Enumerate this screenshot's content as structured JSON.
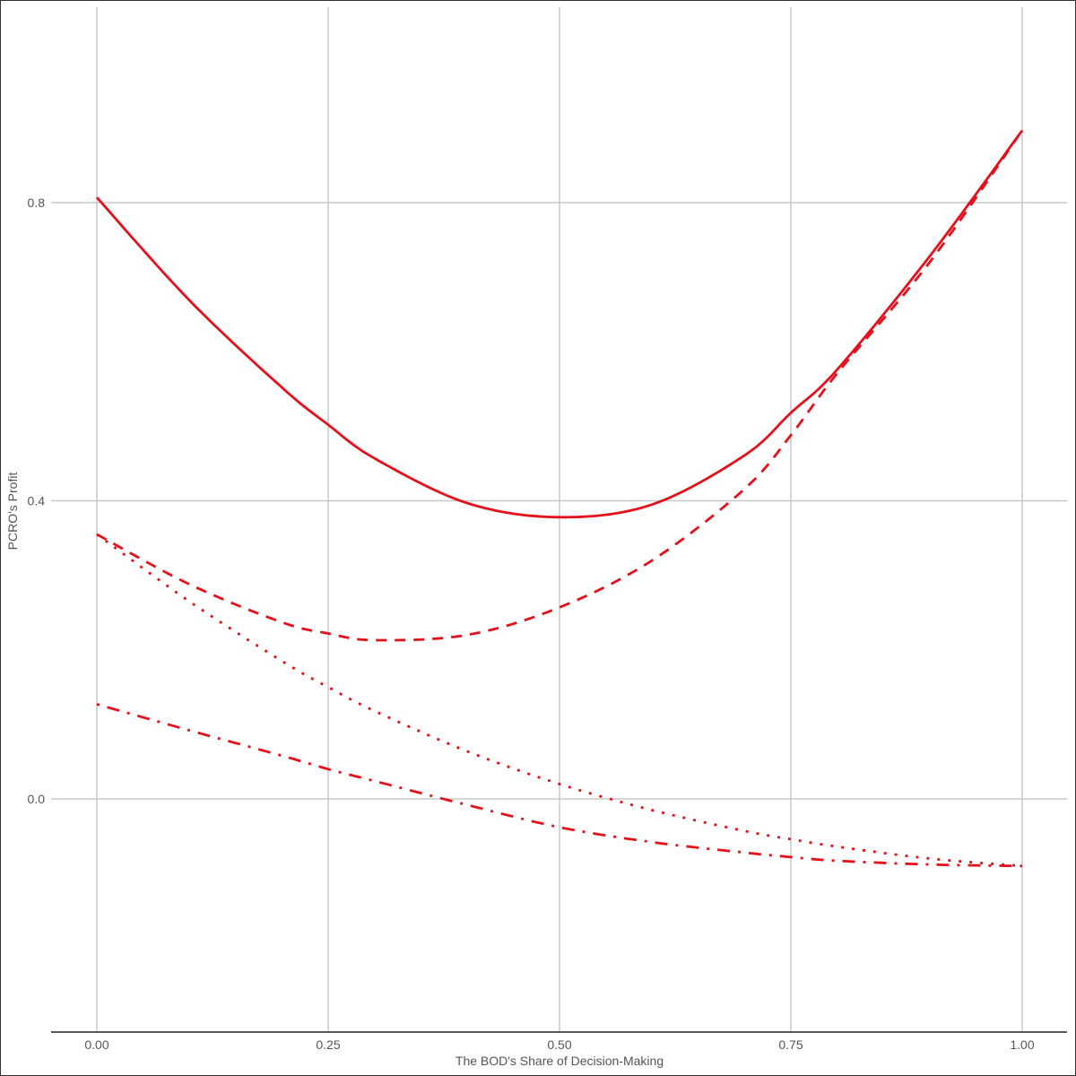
{
  "chart_data": {
    "type": "line",
    "title": "",
    "xlabel": "The BOD's Share of Decision-Making",
    "ylabel": "PCRO's Profit",
    "xlim": [
      0,
      1
    ],
    "ylim": [
      -0.31,
      1.06
    ],
    "x_ticks": [
      0.0,
      0.25,
      0.5,
      0.75,
      1.0
    ],
    "x_tick_labels": [
      "0.00",
      "0.25",
      "0.50",
      "0.75",
      "1.00"
    ],
    "y_ticks": [
      0.0,
      0.4,
      0.8
    ],
    "y_tick_labels": [
      "0.0",
      "0.4",
      "0.8"
    ],
    "grid": true,
    "legend": null,
    "x": [
      0,
      0.1,
      0.2,
      0.25,
      0.3,
      0.4,
      0.5,
      0.6,
      0.7,
      0.75,
      0.8,
      0.9,
      1.0
    ],
    "series": [
      {
        "name": "solid",
        "linestyle": "solid",
        "color": "#e4111b",
        "values": [
          0.807,
          0.669,
          0.552,
          0.502,
          0.457,
          0.397,
          0.378,
          0.395,
          0.461,
          0.518,
          0.576,
          0.728,
          0.897
        ]
      },
      {
        "name": "dashed",
        "linestyle": "dashed",
        "color": "#e4111b",
        "values": [
          0.355,
          0.288,
          0.237,
          0.222,
          0.213,
          0.22,
          0.257,
          0.32,
          0.416,
          0.488,
          0.571,
          0.72,
          0.897
        ]
      },
      {
        "name": "dotted",
        "linestyle": "dotted",
        "color": "#e4111b",
        "values": [
          0.355,
          0.265,
          0.185,
          0.15,
          0.118,
          0.064,
          0.02,
          -0.015,
          -0.043,
          -0.054,
          -0.064,
          -0.08,
          -0.09
        ]
      },
      {
        "name": "dotdash",
        "linestyle": "dotdash",
        "color": "#e4111b",
        "values": [
          0.127,
          0.092,
          0.058,
          0.04,
          0.024,
          -0.008,
          -0.038,
          -0.058,
          -0.072,
          -0.078,
          -0.083,
          -0.088,
          -0.09
        ]
      }
    ]
  },
  "colors": {
    "line": "#e4111b",
    "grid": "#c8c8c8",
    "axis": "#222222",
    "text": "#555555"
  }
}
